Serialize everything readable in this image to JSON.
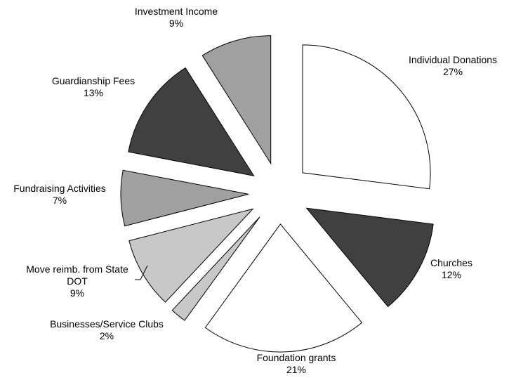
{
  "chart_data": {
    "type": "pie",
    "categories": [
      "Individual Donations",
      "Churches",
      "Foundation grants",
      "Businesses/Service Clubs",
      "Move reimb. from State DOT",
      "Fundraising Activities",
      "Guardianship Fees",
      "Investment Income"
    ],
    "values": [
      27,
      12,
      21,
      2,
      9,
      7,
      13,
      9
    ],
    "value_labels": [
      "27%",
      "12%",
      "21%",
      "2%",
      "9%",
      "7%",
      "13%",
      "9%"
    ],
    "colors": [
      "#ffffff",
      "#404040",
      "#ffffff",
      "#c8c8c8",
      "#c8c8c8",
      "#a0a0a0",
      "#404040",
      "#a0a0a0"
    ],
    "exploded": true
  }
}
